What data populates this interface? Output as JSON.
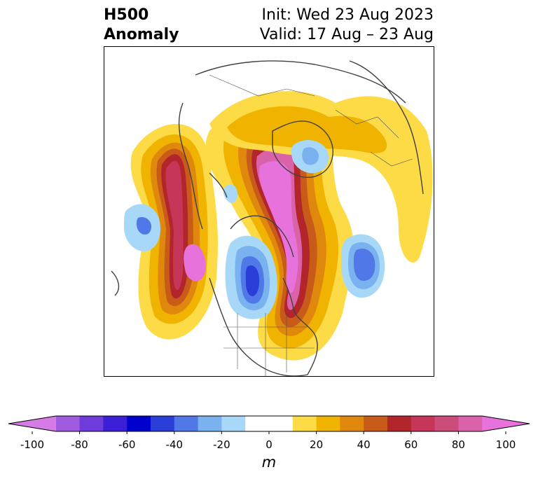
{
  "title": {
    "left_line1": "H500",
    "left_line2": "Anomaly",
    "init_text": "Init: Wed 23 Aug 2023",
    "valid_text": "Valid: 17 Aug – 23 Aug"
  },
  "colorbar": {
    "unit": "m",
    "ticks": [
      "-100",
      "-80",
      "-60",
      "-40",
      "-20",
      "0",
      "20",
      "40",
      "60",
      "80",
      "100"
    ],
    "colors": [
      "#d67ae6",
      "#9f5ae0",
      "#6f3bdb",
      "#3a1fd7",
      "#0000cc",
      "#2a3fd8",
      "#5078e6",
      "#7ab2f0",
      "#a8d8f8",
      "#ffffff",
      "#ffffff",
      "#fcdb47",
      "#f0b300",
      "#e0880e",
      "#c85a1a",
      "#b2262b",
      "#c53658",
      "#cc4c7a",
      "#da62a8",
      "#e872dc"
    ]
  },
  "map": {
    "anomaly_colors": {
      "y1": "#fcdb47",
      "y2": "#f0b300",
      "o1": "#e0880e",
      "o2": "#c85a1a",
      "r1": "#b2262b",
      "r2": "#c53658",
      "p1": "#cc4c7a",
      "p2": "#da62a8",
      "p3": "#e872dc",
      "b1": "#a8d8f8",
      "b2": "#7ab2f0",
      "b3": "#5078e6",
      "b4": "#2a3fd8"
    }
  }
}
